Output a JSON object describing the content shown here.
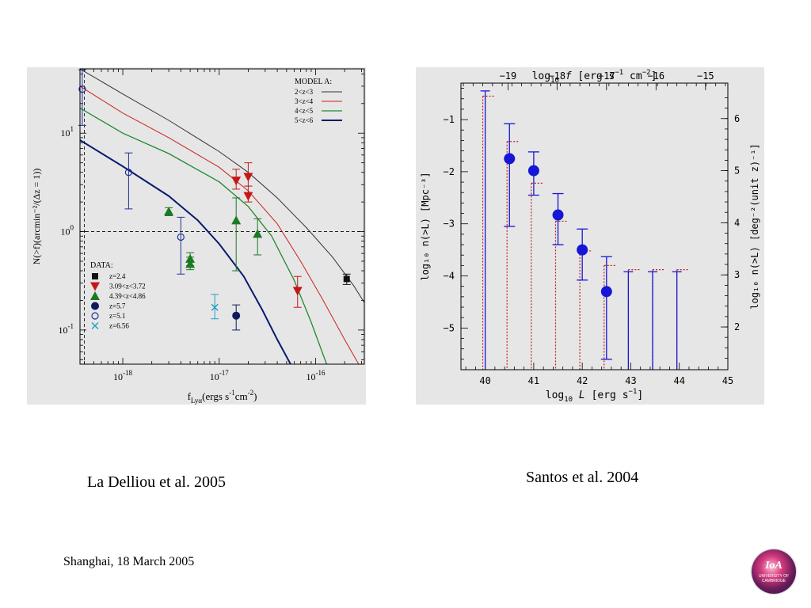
{
  "captions": {
    "left": "La Delliou et al. 2005",
    "right": "Santos et al. 2004",
    "footer": "Shanghai, 18 March  2005"
  },
  "logo": {
    "title": "IoA",
    "subtitle": "UNIVERSITY OF CAMBRIDGE"
  },
  "chart_data": [
    {
      "type": "line",
      "panel": "La Delliou et al. 2005",
      "xlabel_main": "f",
      "xlabel_sub": "Lyα",
      "xlabel_rest": "(ergs s",
      "xlabel_exp": "-1",
      "xlabel_tail": "cm",
      "xlabel_exp2": "-2",
      "xlabel_close": ")",
      "ylabel": "N(>f)(arcmin⁻²/(Δz = 1))",
      "x_scale": "log",
      "y_scale": "log",
      "xlim": [
        3.6e-19,
        3.2e-16
      ],
      "ylim": [
        0.045,
        45
      ],
      "x_ticks": [
        {
          "v": 1e-18,
          "base": "10",
          "exp": "-18"
        },
        {
          "v": 1e-17,
          "base": "10",
          "exp": "-17"
        },
        {
          "v": 1e-16,
          "base": "10",
          "exp": "-16"
        }
      ],
      "y_ticks": [
        {
          "v": 0.1,
          "base": "10",
          "exp": "-1"
        },
        {
          "v": 1,
          "base": "10",
          "exp": "0"
        },
        {
          "v": 10,
          "base": "10",
          "exp": "1"
        }
      ],
      "hline": 1.0,
      "vline": 4e-19,
      "model_legend_title": "MODEL A:",
      "series": [
        {
          "name": "2<z<3",
          "color": "#333333",
          "width": 1,
          "x": [
            3.6e-19,
            1e-18,
            3e-18,
            1e-17,
            2e-17,
            4e-17,
            8e-17,
            1.5e-16,
            2.5e-16,
            3.2e-16
          ],
          "y": [
            45,
            25,
            13.5,
            6.5,
            4.0,
            2.2,
            1.1,
            0.55,
            0.28,
            0.19
          ]
        },
        {
          "name": "3<z<4",
          "color": "#cc2222",
          "width": 1,
          "x": [
            3.6e-19,
            1e-18,
            3e-18,
            1e-17,
            2e-17,
            4e-17,
            7e-17,
            1.2e-16,
            2e-16,
            2.8e-16
          ],
          "y": [
            30,
            16,
            9,
            4.5,
            2.6,
            1.2,
            0.5,
            0.2,
            0.08,
            0.045
          ]
        },
        {
          "name": "4<z<5",
          "color": "#1e8a2e",
          "width": 1.3,
          "x": [
            3.6e-19,
            1e-18,
            3e-18,
            1e-17,
            2e-17,
            3.5e-17,
            6e-17,
            9e-17,
            1.3e-16
          ],
          "y": [
            18,
            10,
            6.2,
            3.2,
            1.8,
            0.9,
            0.32,
            0.12,
            0.045
          ]
        },
        {
          "name": "5<z<6",
          "color": "#0a1a6e",
          "width": 2,
          "x": [
            3.6e-19,
            1e-18,
            3e-18,
            6e-18,
            1e-17,
            1.8e-17,
            2.8e-17,
            4e-17,
            5.5e-17
          ],
          "y": [
            8.5,
            4.6,
            2.3,
            1.3,
            0.75,
            0.35,
            0.16,
            0.08,
            0.045
          ]
        }
      ],
      "data_legend_title": "DATA:",
      "data_sets": [
        {
          "name": "z=2.4",
          "marker": "square",
          "color": "#111111",
          "points": [
            {
              "x": 2.1e-16,
              "y": 0.33,
              "lo": 0.29,
              "hi": 0.37
            }
          ]
        },
        {
          "name": "3.09<z<3.72",
          "marker": "triangle-down",
          "color": "#c41818",
          "points": [
            {
              "x": 1.5e-17,
              "y": 3.3,
              "lo": 2.7,
              "hi": 4.3
            },
            {
              "x": 2e-17,
              "y": 3.6,
              "lo": 2.9,
              "hi": 5.0
            },
            {
              "x": 2e-17,
              "y": 2.3,
              "lo": 2.0,
              "hi": 2.9
            },
            {
              "x": 6.5e-17,
              "y": 0.25,
              "lo": 0.17,
              "hi": 0.35
            }
          ]
        },
        {
          "name": "4.39<z<4.86",
          "marker": "triangle-up",
          "color": "#1b7a22",
          "points": [
            {
              "x": 3e-18,
              "y": 1.6,
              "lo": 1.45,
              "hi": 1.75
            },
            {
              "x": 5e-18,
              "y": 0.53,
              "lo": 0.45,
              "hi": 0.61
            },
            {
              "x": 5e-18,
              "y": 0.47,
              "lo": 0.41,
              "hi": 0.55
            },
            {
              "x": 1.5e-17,
              "y": 1.3,
              "lo": 0.4,
              "hi": 2.2
            },
            {
              "x": 2.5e-17,
              "y": 0.95,
              "lo": 0.58,
              "hi": 1.35
            }
          ]
        },
        {
          "name": "z=5.7",
          "marker": "circle-filled",
          "color": "#0d1b5c",
          "points": [
            {
              "x": 1.5e-17,
              "y": 0.14,
              "lo": 0.1,
              "hi": 0.18
            }
          ]
        },
        {
          "name": "z=5.1",
          "marker": "circle-open",
          "color": "#1f2f9a",
          "points": [
            {
              "x": 3.8e-19,
              "y": 28,
              "lo": 12,
              "hi": 44
            },
            {
              "x": 1.15e-18,
              "y": 4.0,
              "lo": 1.7,
              "hi": 6.3
            },
            {
              "x": 4e-18,
              "y": 0.88,
              "lo": 0.37,
              "hi": 1.4
            }
          ]
        },
        {
          "name": "z=6.56",
          "marker": "x",
          "color": "#1f9ec4",
          "points": [
            {
              "x": 9e-18,
              "y": 0.17,
              "lo": 0.13,
              "hi": 0.23
            }
          ]
        }
      ]
    },
    {
      "type": "scatter",
      "panel": "Santos et al. 2004",
      "xlabel_pre": "log",
      "xlabel_sub": "10",
      "xlabel_mid": " L ",
      "xlabel_rest": "[erg s",
      "xlabel_exp": "−1",
      "xlabel_close": "]",
      "top_label_pre": "log",
      "top_label_sub": "10",
      "top_label_mid": " f ",
      "top_label_rest": "[erg s",
      "top_label_exp1": "−1",
      "top_label_mid2": " cm",
      "top_label_exp2": "−2",
      "top_label_close": "]",
      "ylabel": "log₁₀ n(>L) [Mpc⁻³]",
      "ylabel_right": "log₁₀ n(>L) [deg⁻²(unit z)⁻¹]",
      "xlim": [
        39.5,
        45
      ],
      "ylim": [
        -5.8,
        -0.3
      ],
      "x_ticks": [
        "40",
        "41",
        "42",
        "43",
        "44",
        "45"
      ],
      "y_ticks": [
        "−1",
        "−2",
        "−3",
        "−4",
        "−5"
      ],
      "top_ticks": [
        {
          "label": "−19",
          "x": 40.47
        },
        {
          "label": "−18",
          "x": 41.48
        },
        {
          "label": "−17",
          "x": 42.5
        },
        {
          "label": "−16",
          "x": 43.52
        },
        {
          "label": "−15",
          "x": 44.54
        }
      ],
      "right_ticks": [
        {
          "label": "6",
          "y": -0.98
        },
        {
          "label": "5",
          "y": -1.98
        },
        {
          "label": "4",
          "y": -2.98
        },
        {
          "label": "3",
          "y": -3.98
        },
        {
          "label": "2",
          "y": -4.98
        }
      ],
      "points": [
        {
          "x": 40.5,
          "y": -1.75,
          "lo": -3.05,
          "hi": -1.08
        },
        {
          "x": 41.0,
          "y": -1.98,
          "lo": -2.45,
          "hi": -1.62
        },
        {
          "x": 41.5,
          "y": -2.83,
          "lo": -3.4,
          "hi": -2.42
        },
        {
          "x": 42.0,
          "y": -3.5,
          "lo": -4.08,
          "hi": -3.1
        },
        {
          "x": 42.5,
          "y": -4.3,
          "lo": -5.6,
          "hi": -3.63
        }
      ],
      "upper_limits": [
        {
          "x": 40.0,
          "y": -0.45
        },
        {
          "x": 42.95,
          "y": -3.92
        },
        {
          "x": 43.45,
          "y": -3.92
        },
        {
          "x": 43.95,
          "y": -3.92
        }
      ],
      "dotted_steps": [
        {
          "x": 39.95,
          "y": -0.55
        },
        {
          "x": 40.45,
          "y": -1.42
        },
        {
          "x": 40.95,
          "y": -2.22
        },
        {
          "x": 41.45,
          "y": -2.95
        },
        {
          "x": 41.95,
          "y": -3.52
        },
        {
          "x": 42.45,
          "y": -3.8
        },
        {
          "x": 42.95,
          "y": -3.88
        },
        {
          "x": 43.45,
          "y": -3.88
        },
        {
          "x": 43.95,
          "y": -3.88
        }
      ],
      "colors": {
        "points": "#1616d6",
        "dotted": "#c02020"
      }
    }
  ]
}
